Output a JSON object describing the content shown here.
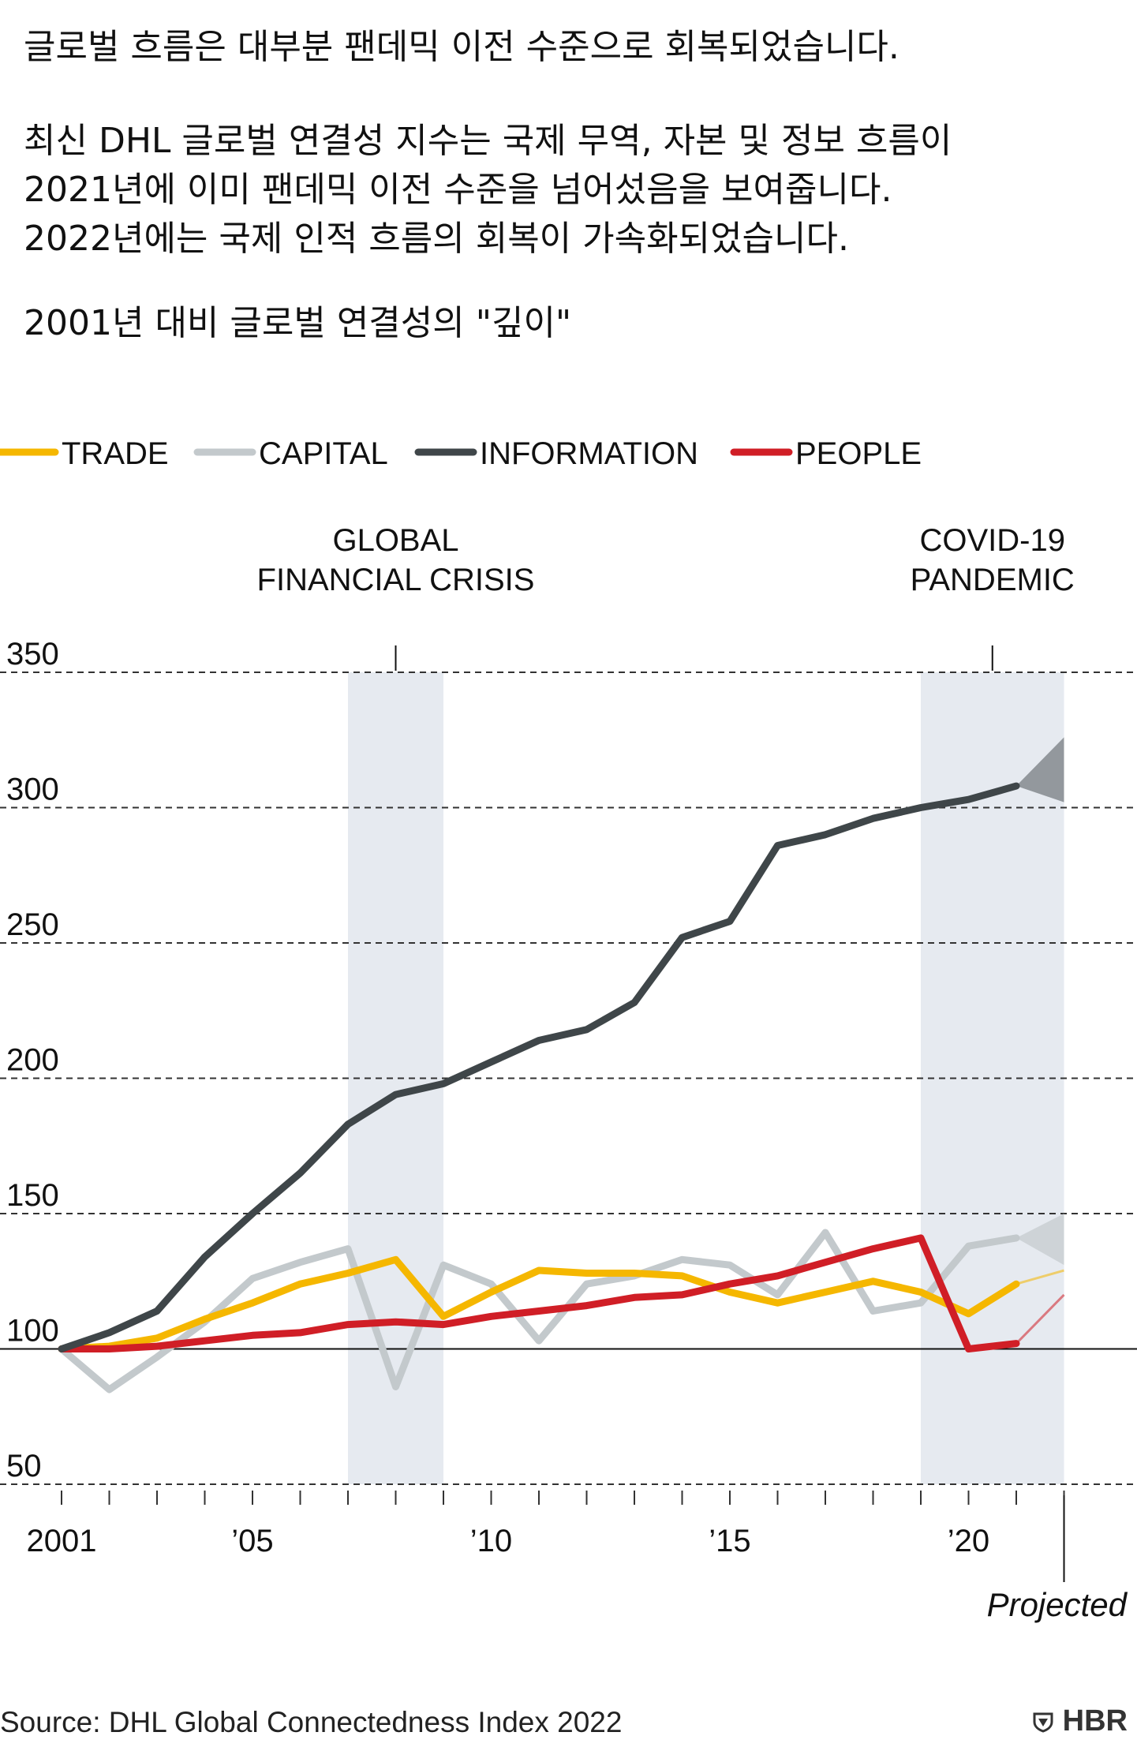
{
  "header": {
    "title": "글로벌 흐름은 대부분 팬데믹 이전 수준으로 회복되었습니다.",
    "subtitle_lines": [
      "최신 DHL 글로벌 연결성 지수는 국제 무역, 자본 및 정보 흐름이",
      "2021년에 이미 팬데믹 이전 수준을 넘어섰음을 보여줍니다.",
      "2022년에는 국제 인적 흐름의 회복이 가속화되었습니다."
    ],
    "metric": "2001년 대비 글로벌 연결성의 \"깊이\""
  },
  "footer": {
    "source": "Source: DHL Global Connectedness Index 2022",
    "brand": "HBR",
    "brand_icon": "shield-icon"
  },
  "chart_data": {
    "type": "line",
    "x": [
      2001,
      2002,
      2003,
      2004,
      2005,
      2006,
      2007,
      2008,
      2009,
      2010,
      2011,
      2012,
      2013,
      2014,
      2015,
      2016,
      2017,
      2018,
      2019,
      2020,
      2021
    ],
    "projected_x": 2022,
    "ylim": [
      50,
      350
    ],
    "yticks": [
      50,
      100,
      150,
      200,
      250,
      300,
      350
    ],
    "ytick_labels": [
      "50",
      "100",
      "150",
      "200",
      "250",
      "300",
      "350"
    ],
    "xtick_labels": [
      {
        "year": 2001,
        "label": "2001"
      },
      {
        "year": 2005,
        "label": "’05"
      },
      {
        "year": 2010,
        "label": "’10"
      },
      {
        "year": 2015,
        "label": "’15"
      },
      {
        "year": 2020,
        "label": "’20"
      }
    ],
    "series": [
      {
        "name": "TRADE",
        "color": "#f5b700",
        "values": [
          100,
          101,
          104,
          111,
          117,
          124,
          128,
          133,
          112,
          121,
          129,
          128,
          128,
          127,
          121,
          117,
          121,
          125,
          121,
          113,
          124
        ],
        "projected": [
          129
        ]
      },
      {
        "name": "CAPITAL",
        "color": "#c3c9cc",
        "values": [
          100,
          85,
          97,
          110,
          126,
          132,
          137,
          86,
          131,
          124,
          103,
          124,
          127,
          133,
          131,
          120,
          143,
          114,
          117,
          138,
          141
        ],
        "projected": [
          131,
          150
        ]
      },
      {
        "name": "INFORMATION",
        "color": "#3f4649",
        "values": [
          100,
          106,
          114,
          134,
          150,
          165,
          183,
          194,
          198,
          206,
          214,
          218,
          228,
          252,
          258,
          286,
          290,
          296,
          300,
          303,
          308
        ],
        "projected": [
          302,
          326
        ]
      },
      {
        "name": "PEOPLE",
        "color": "#d01e26",
        "values": [
          100,
          100,
          101,
          103,
          105,
          106,
          109,
          110,
          109,
          112,
          114,
          116,
          119,
          120,
          124,
          127,
          132,
          137,
          141,
          100,
          102
        ],
        "projected": [
          120
        ]
      }
    ],
    "shaded_periods": [
      {
        "label_lines": [
          "GLOBAL",
          "FINANCIAL CRISIS"
        ],
        "start": 2007,
        "end": 2009
      },
      {
        "label_lines": [
          "COVID-19",
          "PANDEMIC"
        ],
        "start": 2019,
        "end": 2022
      }
    ],
    "projection_note": "Projected",
    "baseline": 100,
    "grid": "dashed horizontal"
  }
}
